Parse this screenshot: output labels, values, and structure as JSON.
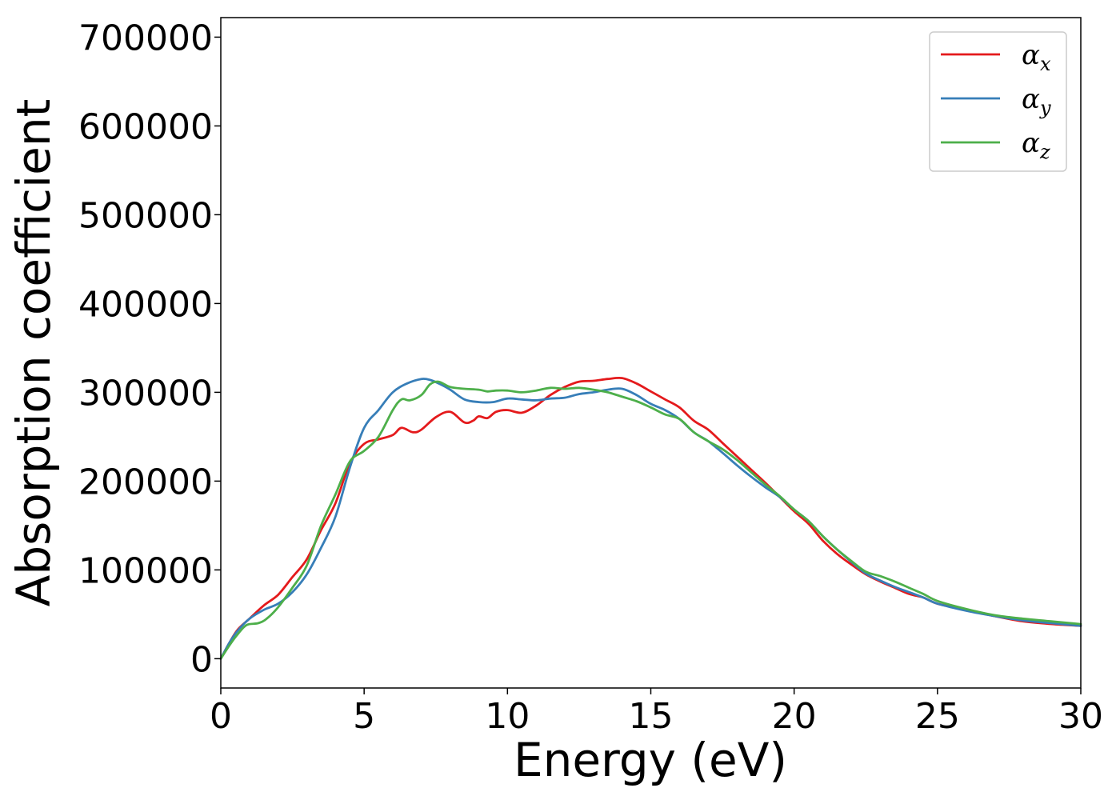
{
  "chart_data": {
    "type": "line",
    "xlabel": "Energy (eV)",
    "ylabel": "Absorption coefficient",
    "xlim": [
      0,
      30
    ],
    "ylim": [
      -33000,
      722000
    ],
    "xticks": [
      0,
      5,
      10,
      15,
      20,
      25,
      30
    ],
    "yticks": [
      0,
      100000,
      200000,
      300000,
      400000,
      500000,
      600000,
      700000
    ],
    "xtick_labels": [
      "0",
      "5",
      "10",
      "15",
      "20",
      "25",
      "30"
    ],
    "ytick_labels": [
      "0",
      "100000",
      "200000",
      "300000",
      "400000",
      "500000",
      "600000",
      "700000"
    ],
    "grid": false,
    "legend_position": "top-right",
    "series": [
      {
        "name": "α_x",
        "name_main": "α",
        "name_sub": "x",
        "color": "#e41a1c",
        "x": [
          0,
          0.3,
          0.6,
          1.0,
          1.5,
          2.0,
          2.5,
          3.0,
          3.5,
          4.0,
          4.5,
          5.0,
          5.5,
          6.0,
          6.3,
          6.7,
          7.0,
          7.5,
          8.0,
          8.5,
          8.8,
          9.0,
          9.3,
          9.6,
          10.0,
          10.5,
          11.0,
          11.5,
          12.0,
          12.5,
          13.0,
          13.5,
          14.0,
          14.5,
          15.0,
          15.5,
          16.0,
          16.5,
          17.0,
          17.5,
          18.0,
          18.5,
          19.0,
          19.5,
          20.0,
          20.5,
          21.0,
          21.5,
          22.0,
          22.5,
          23.0,
          23.5,
          24.0,
          24.5,
          25.0,
          26.0,
          27.0,
          28.0,
          29.0,
          30.0
        ],
        "y": [
          0,
          18000,
          33000,
          45000,
          60000,
          72000,
          92000,
          112000,
          145000,
          175000,
          220000,
          242000,
          247000,
          252000,
          260000,
          255000,
          258000,
          272000,
          278000,
          266000,
          268000,
          273000,
          271000,
          278000,
          280000,
          277000,
          285000,
          297000,
          306000,
          312000,
          313000,
          315000,
          316000,
          310000,
          301000,
          292000,
          283000,
          268000,
          258000,
          243000,
          228000,
          213000,
          198000,
          182000,
          166000,
          152000,
          133000,
          118000,
          106000,
          95000,
          87000,
          80000,
          73000,
          69000,
          62000,
          55000,
          48000,
          42000,
          39000,
          37000
        ]
      },
      {
        "name": "α_y",
        "name_main": "α",
        "name_sub": "y",
        "color": "#377eb8",
        "x": [
          0,
          0.3,
          0.6,
          1.0,
          1.5,
          2.0,
          2.5,
          3.0,
          3.5,
          4.0,
          4.5,
          5.0,
          5.5,
          6.0,
          6.5,
          7.0,
          7.3,
          7.6,
          8.0,
          8.5,
          9.0,
          9.5,
          10.0,
          10.5,
          11.0,
          11.5,
          12.0,
          12.5,
          13.0,
          13.5,
          14.0,
          14.5,
          15.0,
          15.5,
          16.0,
          16.5,
          17.0,
          17.5,
          18.0,
          18.5,
          19.0,
          19.5,
          20.0,
          20.5,
          21.0,
          21.5,
          22.0,
          22.5,
          23.0,
          23.5,
          24.0,
          24.5,
          25.0,
          26.0,
          27.0,
          28.0,
          29.0,
          30.0
        ],
        "y": [
          0,
          18000,
          32000,
          45000,
          55000,
          62000,
          75000,
          95000,
          125000,
          160000,
          215000,
          260000,
          280000,
          300000,
          310000,
          315000,
          314000,
          310000,
          303000,
          292000,
          289000,
          289000,
          293000,
          292000,
          291000,
          293000,
          294000,
          298000,
          300000,
          303000,
          304000,
          297000,
          287000,
          280000,
          270000,
          255000,
          245000,
          232000,
          218000,
          205000,
          193000,
          182000,
          168000,
          155000,
          138000,
          123000,
          109000,
          96000,
          88000,
          81000,
          75000,
          69000,
          62000,
          54000,
          48000,
          43000,
          40000,
          37000
        ]
      },
      {
        "name": "α_z",
        "name_main": "α",
        "name_sub": "z",
        "color": "#4daf4a",
        "x": [
          0,
          0.3,
          0.6,
          0.9,
          1.3,
          1.6,
          2.0,
          2.5,
          3.0,
          3.5,
          4.0,
          4.5,
          5.0,
          5.5,
          6.0,
          6.3,
          6.6,
          7.0,
          7.3,
          7.6,
          8.0,
          8.5,
          9.0,
          9.3,
          9.6,
          10.0,
          10.5,
          11.0,
          11.5,
          12.0,
          12.5,
          13.0,
          13.5,
          14.0,
          14.5,
          15.0,
          15.5,
          16.0,
          16.5,
          17.0,
          17.5,
          18.0,
          18.5,
          19.0,
          19.5,
          20.0,
          20.5,
          21.0,
          21.5,
          22.0,
          22.5,
          23.0,
          23.5,
          24.0,
          24.5,
          25.0,
          26.0,
          27.0,
          28.0,
          29.0,
          30.0
        ],
        "y": [
          0,
          15000,
          28000,
          38000,
          40000,
          45000,
          58000,
          80000,
          105000,
          150000,
          185000,
          222000,
          234000,
          250000,
          280000,
          292000,
          291000,
          297000,
          309000,
          312000,
          306000,
          304000,
          303000,
          301000,
          302000,
          302000,
          300000,
          302000,
          305000,
          304000,
          305000,
          303000,
          300000,
          295000,
          290000,
          283000,
          275000,
          270000,
          255000,
          245000,
          236000,
          224000,
          210000,
          196000,
          183000,
          168000,
          155000,
          138000,
          123000,
          110000,
          98000,
          93000,
          87000,
          80000,
          73000,
          65000,
          56000,
          49000,
          45000,
          42000,
          39000
        ]
      }
    ]
  }
}
